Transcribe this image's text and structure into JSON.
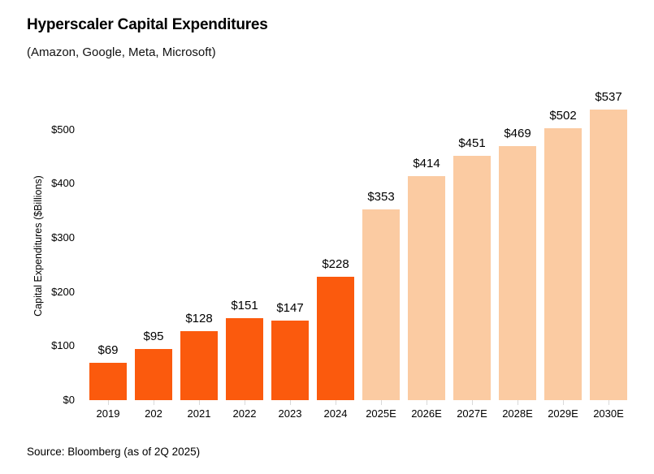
{
  "chart_data": {
    "type": "bar",
    "title": "Hyperscaler Capital Expenditures",
    "subtitle": "(Amazon, Google, Meta, Microsoft)",
    "categories": [
      "2019",
      "202",
      "2021",
      "2022",
      "2023",
      "2024",
      "2025E",
      "2026E",
      "2027E",
      "2028E",
      "2029E",
      "2030E"
    ],
    "values": [
      69,
      95,
      128,
      151,
      147,
      228,
      353,
      414,
      451,
      469,
      502,
      537
    ],
    "bar_labels": [
      "$69",
      "$95",
      "$128",
      "$151",
      "$147",
      "$228",
      "$353",
      "$414",
      "$451",
      "$469",
      "$502",
      "$537"
    ],
    "bar_types": [
      "actual",
      "actual",
      "actual",
      "actual",
      "actual",
      "actual",
      "estimate",
      "estimate",
      "estimate",
      "estimate",
      "estimate",
      "estimate"
    ],
    "xlabel": "",
    "ylabel": "Capital Expenditures ($Billions)",
    "y_ticks": [
      "$0",
      "$100",
      "$200",
      "$300",
      "$400",
      "$500"
    ],
    "y_tick_values": [
      0,
      100,
      200,
      300,
      400,
      500
    ],
    "ylim": [
      0,
      570
    ],
    "grid": false,
    "legend": "none",
    "colors": {
      "actual": "#FB5A0D",
      "estimate": "#FBCBA2",
      "tick_mark": "#D9D9D9",
      "text": "#000000",
      "background": "#FFFFFF"
    }
  },
  "footer": {
    "source": "Source: Bloomberg (as of 2Q 2025)"
  }
}
